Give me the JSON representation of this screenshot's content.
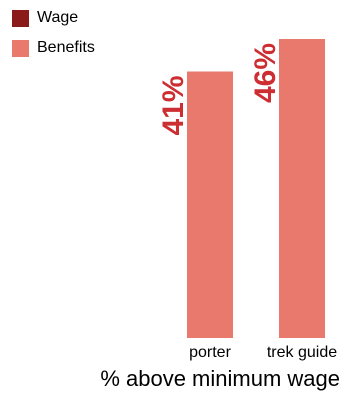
{
  "chart_data": {
    "type": "bar",
    "categories": [
      "porter",
      "trek guide"
    ],
    "series": [
      {
        "name": "Wage",
        "color": "#8b1a1a",
        "values": [
          null,
          null
        ]
      },
      {
        "name": "Benefits",
        "color": "#e8796c",
        "values": [
          41,
          46
        ]
      }
    ],
    "data_labels": [
      "41%",
      "46%"
    ],
    "data_label_color": "#cc2e32",
    "xlabel": "% above minimum wage",
    "ylabel": "",
    "ylim": [
      0,
      52
    ],
    "grid": false,
    "legend_position": "top-left",
    "axis_color": "#000000"
  }
}
